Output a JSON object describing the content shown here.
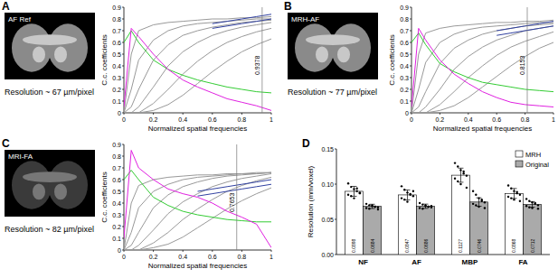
{
  "chart_data": [
    {
      "type": "line",
      "panel": "A",
      "image_title": "AF Ref",
      "annotation": "Resolution ~ 67 µm/pixel",
      "x_label": "Normalized spatial frequencies",
      "y_label": "C.c. coefficients",
      "xlim": [
        0,
        1
      ],
      "ylim": [
        0,
        0.9
      ],
      "xticks": [
        0,
        0.2,
        0.4,
        0.6,
        0.8,
        1
      ],
      "yticks": [
        0,
        0.1,
        0.2,
        0.3,
        0.4,
        0.5,
        0.6,
        0.7,
        0.8,
        0.9
      ],
      "cutoff": 0.9378,
      "x": [
        0,
        0.05,
        0.1,
        0.2,
        0.3,
        0.4,
        0.5,
        0.6,
        0.7,
        0.8,
        0.9,
        1
      ],
      "series": [
        {
          "color": "#999999",
          "values": [
            0,
            0.5,
            0.7,
            0.75,
            0.77,
            0.78,
            0.79,
            0.8,
            0.8,
            0.81,
            0.81,
            0.82
          ]
        },
        {
          "color": "#999999",
          "values": [
            0,
            0.2,
            0.45,
            0.62,
            0.7,
            0.74,
            0.76,
            0.77,
            0.78,
            0.79,
            0.8,
            0.8
          ]
        },
        {
          "color": "#999999",
          "values": [
            0,
            0.05,
            0.2,
            0.45,
            0.58,
            0.66,
            0.7,
            0.73,
            0.75,
            0.77,
            0.78,
            0.79
          ]
        },
        {
          "color": "#999999",
          "values": [
            0,
            0,
            0.05,
            0.22,
            0.4,
            0.52,
            0.6,
            0.66,
            0.7,
            0.73,
            0.75,
            0.77
          ]
        },
        {
          "color": "#999999",
          "values": [
            0,
            0,
            0,
            0.08,
            0.2,
            0.33,
            0.44,
            0.53,
            0.6,
            0.65,
            0.69,
            0.72
          ]
        },
        {
          "color": "#999999",
          "values": [
            0,
            0,
            0,
            0.02,
            0.07,
            0.15,
            0.25,
            0.35,
            0.44,
            0.52,
            0.58,
            0.63
          ]
        },
        {
          "color": "#3040a0",
          "values": [
            null,
            null,
            null,
            null,
            null,
            null,
            null,
            0.76,
            0.78,
            0.8,
            0.82,
            0.84
          ]
        },
        {
          "color": "#3040a0",
          "values": [
            null,
            null,
            null,
            null,
            null,
            null,
            null,
            0.72,
            0.74,
            0.76,
            0.78,
            0.8
          ]
        },
        {
          "color": "#33cc33",
          "values": [
            0.6,
            0.7,
            0.6,
            0.45,
            0.37,
            0.32,
            0.28,
            0.25,
            0.22,
            0.2,
            0.18,
            0.17
          ]
        },
        {
          "color": "#e020e0",
          "values": [
            0.05,
            0.72,
            0.65,
            0.5,
            0.37,
            0.28,
            0.22,
            0.17,
            0.12,
            0.09,
            0.06,
            0.02
          ]
        }
      ]
    },
    {
      "type": "line",
      "panel": "B",
      "image_title": "MRH-AF",
      "annotation": "Resolution ~ 77 µm/pixel",
      "x_label": "Normalized spatial frequencies",
      "y_label": "C.c. coefficients",
      "xlim": [
        0,
        1
      ],
      "ylim": [
        0,
        0.9
      ],
      "xticks": [
        0,
        0.2,
        0.4,
        0.6,
        0.8,
        1
      ],
      "yticks": [
        0,
        0.1,
        0.2,
        0.3,
        0.4,
        0.5,
        0.6,
        0.7,
        0.8,
        0.9
      ],
      "cutoff": 0.8153,
      "x": [
        0,
        0.05,
        0.1,
        0.2,
        0.3,
        0.4,
        0.5,
        0.6,
        0.7,
        0.8,
        0.9,
        1
      ],
      "series": [
        {
          "color": "#999999",
          "values": [
            0,
            0.5,
            0.68,
            0.72,
            0.74,
            0.75,
            0.76,
            0.77,
            0.77,
            0.78,
            0.78,
            0.79
          ]
        },
        {
          "color": "#999999",
          "values": [
            0,
            0.2,
            0.43,
            0.6,
            0.67,
            0.71,
            0.73,
            0.74,
            0.75,
            0.76,
            0.77,
            0.77
          ]
        },
        {
          "color": "#999999",
          "values": [
            0,
            0.05,
            0.18,
            0.42,
            0.55,
            0.62,
            0.67,
            0.7,
            0.72,
            0.74,
            0.75,
            0.76
          ]
        },
        {
          "color": "#999999",
          "values": [
            0,
            0,
            0.05,
            0.2,
            0.37,
            0.48,
            0.56,
            0.62,
            0.66,
            0.7,
            0.72,
            0.74
          ]
        },
        {
          "color": "#999999",
          "values": [
            0,
            0,
            0,
            0.07,
            0.18,
            0.3,
            0.4,
            0.49,
            0.56,
            0.61,
            0.65,
            0.69
          ]
        },
        {
          "color": "#999999",
          "values": [
            0,
            0,
            0,
            0.02,
            0.06,
            0.13,
            0.22,
            0.31,
            0.4,
            0.48,
            0.55,
            0.6
          ]
        },
        {
          "color": "#3040a0",
          "values": [
            null,
            null,
            null,
            null,
            null,
            null,
            null,
            0.7,
            0.72,
            0.74,
            0.76,
            0.78
          ]
        },
        {
          "color": "#3040a0",
          "values": [
            null,
            null,
            null,
            null,
            null,
            null,
            null,
            0.66,
            0.68,
            0.7,
            0.72,
            0.74
          ]
        },
        {
          "color": "#33cc33",
          "values": [
            0.6,
            0.68,
            0.58,
            0.42,
            0.35,
            0.3,
            0.26,
            0.24,
            0.22,
            0.2,
            0.19,
            0.18
          ]
        },
        {
          "color": "#e020e0",
          "values": [
            0.05,
            0.72,
            0.62,
            0.45,
            0.33,
            0.25,
            0.18,
            0.13,
            0.09,
            0.07,
            0.06,
            0.05
          ]
        }
      ]
    },
    {
      "type": "line",
      "panel": "C",
      "image_title": "MRI-FA",
      "annotation": "Resolution ~ 82 µm/pixel",
      "x_label": "Normalized spatial frequencies",
      "y_label": "C.c. coefficients",
      "xlim": [
        0,
        1
      ],
      "ylim": [
        0,
        0.9
      ],
      "xticks": [
        0,
        0.2,
        0.4,
        0.6,
        0.8,
        1
      ],
      "yticks": [
        0,
        0.1,
        0.2,
        0.3,
        0.4,
        0.5,
        0.6,
        0.7,
        0.8,
        0.9
      ],
      "cutoff": 0.7653,
      "x": [
        0,
        0.05,
        0.1,
        0.2,
        0.3,
        0.4,
        0.5,
        0.6,
        0.7,
        0.8,
        0.9,
        1
      ],
      "series": [
        {
          "color": "#999999",
          "values": [
            0,
            0.4,
            0.55,
            0.6,
            0.62,
            0.63,
            0.64,
            0.64,
            0.65,
            0.65,
            0.66,
            0.66
          ]
        },
        {
          "color": "#999999",
          "values": [
            0,
            0.15,
            0.36,
            0.5,
            0.56,
            0.6,
            0.62,
            0.63,
            0.64,
            0.65,
            0.65,
            0.66
          ]
        },
        {
          "color": "#999999",
          "values": [
            0,
            0.04,
            0.15,
            0.36,
            0.47,
            0.54,
            0.58,
            0.61,
            0.63,
            0.64,
            0.65,
            0.66
          ]
        },
        {
          "color": "#999999",
          "values": [
            0,
            0,
            0.04,
            0.17,
            0.31,
            0.41,
            0.48,
            0.54,
            0.58,
            0.61,
            0.63,
            0.65
          ]
        },
        {
          "color": "#999999",
          "values": [
            0,
            0,
            0,
            0.06,
            0.15,
            0.26,
            0.35,
            0.43,
            0.5,
            0.55,
            0.59,
            0.62
          ]
        },
        {
          "color": "#999999",
          "values": [
            0,
            0,
            0,
            0.02,
            0.05,
            0.11,
            0.19,
            0.27,
            0.35,
            0.42,
            0.48,
            0.53
          ]
        },
        {
          "color": "#3040a0",
          "values": [
            null,
            null,
            null,
            null,
            null,
            null,
            0.5,
            0.52,
            0.54,
            0.56,
            0.58,
            0.6
          ]
        },
        {
          "color": "#3040a0",
          "values": [
            null,
            null,
            null,
            null,
            null,
            null,
            0.46,
            0.48,
            0.5,
            0.52,
            0.54,
            0.56
          ]
        },
        {
          "color": "#33cc33",
          "values": [
            0.6,
            0.68,
            0.6,
            0.45,
            0.38,
            0.33,
            0.3,
            0.28,
            0.26,
            0.25,
            0.24,
            0.24
          ]
        },
        {
          "color": "#e020e0",
          "values": [
            0.1,
            0.85,
            0.7,
            0.6,
            0.52,
            0.48,
            0.45,
            0.4,
            0.33,
            0.28,
            0.22,
            0.02
          ]
        }
      ]
    },
    {
      "type": "bar",
      "panel": "D",
      "y_label": "Resolution (mm/voxel)",
      "categories": [
        "NF",
        "AF",
        "MBP",
        "FA"
      ],
      "ylim": [
        0,
        0.15
      ],
      "yticks": [
        {
          "value": 0,
          "label": "0.00"
        },
        0.05,
        {
          "value": 0.1,
          "label": "0.10"
        },
        0.15
      ],
      "legend": "upper right",
      "data_labels": true,
      "series": [
        {
          "name": "MRH",
          "color": "#ffffff",
          "values": [
            0.0898,
            0.0847,
            0.1127,
            0.0868
          ],
          "errors": [
            0.007,
            0.007,
            0.01,
            0.007
          ],
          "points": [
            [
              0.101,
              0.096,
              0.093,
              0.09,
              0.088,
              0.085,
              0.083,
              0.08,
              0.094,
              0.087
            ],
            [
              0.097,
              0.092,
              0.088,
              0.085,
              0.083,
              0.08,
              0.078,
              0.075,
              0.086,
              0.09
            ],
            [
              0.13,
              0.125,
              0.12,
              0.115,
              0.112,
              0.108,
              0.104,
              0.1,
              0.118,
              0.095
            ],
            [
              0.098,
              0.094,
              0.09,
              0.087,
              0.085,
              0.082,
              0.08,
              0.078,
              0.089,
              0.076
            ]
          ]
        },
        {
          "name": "Original",
          "color": "#aaaaaa",
          "values": [
            0.0684,
            0.0686,
            0.0746,
            0.0712
          ],
          "errors": [
            0.003,
            0.003,
            0.006,
            0.004
          ],
          "points": [
            [
              0.072,
              0.07,
              0.069,
              0.068,
              0.067,
              0.066,
              0.065,
              0.07,
              0.068,
              0.064
            ],
            [
              0.073,
              0.071,
              0.069,
              0.068,
              0.067,
              0.066,
              0.065,
              0.07,
              0.068,
              0.069
            ],
            [
              0.09,
              0.085,
              0.08,
              0.076,
              0.074,
              0.072,
              0.07,
              0.068,
              0.078,
              0.066
            ],
            [
              0.079,
              0.076,
              0.074,
              0.072,
              0.07,
              0.069,
              0.067,
              0.066,
              0.073,
              0.065
            ]
          ]
        }
      ]
    }
  ]
}
